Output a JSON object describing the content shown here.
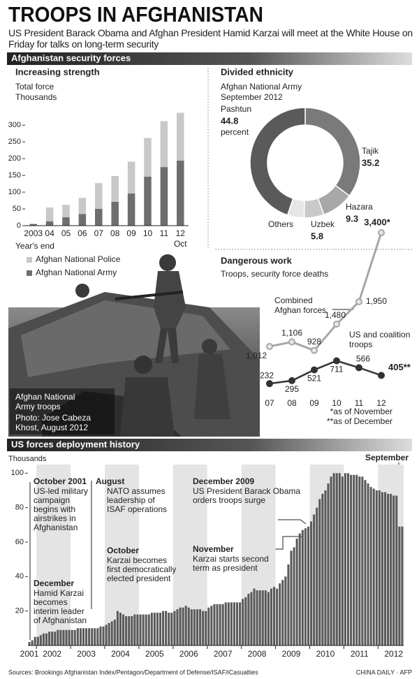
{
  "header": {
    "title": "TROOPS IN AFGHANISTAN",
    "subtitle": "US President Barack Obama and Afghan President Hamid Karzai will meet at the White House on Friday for talks on long-term security"
  },
  "sections": [
    "Afghanistan security forces",
    "US forces deployment history"
  ],
  "photo": {
    "caption": "Afghan National Army troops",
    "credit": "Photo: Jose Cabeza Khost, August 2012"
  },
  "chart_data": [
    {
      "type": "bar",
      "title": "Increasing strength",
      "subtitle": "Total force",
      "y_label": "Thousands",
      "x_label": "Year's end",
      "x_note": "Oct",
      "categories": [
        "2003",
        "04",
        "05",
        "06",
        "07",
        "08",
        "09",
        "10",
        "11",
        "12"
      ],
      "series": [
        {
          "name": "Afghan National Army",
          "color": "#6e6e6e",
          "values": [
            5,
            13,
            25,
            35,
            50,
            71,
            96,
            146,
            175,
            194
          ]
        },
        {
          "name": "Afghan National Police",
          "color": "#c8c8c8",
          "values": [
            0,
            41,
            37,
            48,
            77,
            77,
            95,
            116,
            137,
            143
          ]
        }
      ],
      "ylim": [
        0,
        340
      ],
      "yticks": [
        0,
        50,
        100,
        150,
        200,
        250,
        300
      ]
    },
    {
      "type": "pie",
      "title": "Divided ethnicity",
      "subtitle": "Afghan National Army",
      "note": "September 2012",
      "unit": "percent",
      "categories": [
        "Tajik",
        "Hazara",
        "Uzbek",
        "Others",
        "Pashtun"
      ],
      "values": [
        35.2,
        9.3,
        5.8,
        4.9,
        44.8
      ],
      "value_labels": [
        "35.2",
        "9.3",
        "5.8",
        null,
        "44.8"
      ],
      "colors": [
        "#7a7a7a",
        "#a8a8a8",
        "#c9c9c9",
        "#e6e6e6",
        "#5a5a5a"
      ]
    },
    {
      "type": "line",
      "title": "Dangerous work",
      "subtitle": "Troops, security force deaths",
      "categories": [
        "07",
        "08",
        "09",
        "10",
        "11",
        "12"
      ],
      "series": [
        {
          "name": "Combined Afghan forces",
          "color": "#a6a6a6",
          "values": [
            1012,
            1106,
            928,
            1480,
            1950,
            3400
          ],
          "value_labels": [
            "1,012",
            "1,106",
            "928",
            "1,480",
            "1,950",
            "3,400*"
          ]
        },
        {
          "name": "US and coalition troops",
          "color": "#333333",
          "values": [
            232,
            295,
            521,
            711,
            566,
            405
          ],
          "value_labels": [
            "232",
            "295",
            "521",
            "711",
            "566",
            "405**"
          ]
        }
      ],
      "notes": [
        "*as of November",
        "**as of December"
      ]
    },
    {
      "type": "bar",
      "y_label": "Thousands",
      "color": "#5a5a5a",
      "categories": [
        "2001",
        null,
        null,
        null,
        null,
        null,
        null,
        null,
        "2002",
        null,
        null,
        null,
        null,
        null,
        null,
        null,
        null,
        null,
        null,
        null,
        "2003",
        null,
        null,
        null,
        null,
        null,
        null,
        null,
        null,
        null,
        null,
        null,
        "2004",
        null,
        null,
        null,
        null,
        null,
        null,
        null,
        null,
        null,
        null,
        null,
        "2005",
        null,
        null,
        null,
        null,
        null,
        null,
        null,
        null,
        null,
        null,
        null,
        "2006",
        null,
        null,
        null,
        null,
        null,
        null,
        null,
        null,
        null,
        null,
        null,
        "2007",
        null,
        null,
        null,
        null,
        null,
        null,
        null,
        null,
        null,
        null,
        null,
        "2008",
        null,
        null,
        null,
        null,
        null,
        null,
        null,
        null,
        null,
        null,
        null,
        "2009",
        null,
        null,
        null,
        null,
        null,
        null,
        null,
        null,
        null,
        null,
        null,
        "2010",
        null,
        null,
        null,
        null,
        null,
        null,
        null,
        null,
        null,
        null,
        null,
        "2011",
        null,
        null,
        null,
        null,
        null,
        null,
        null,
        null,
        null,
        null,
        null,
        "2012",
        null,
        null,
        null
      ],
      "values": [
        2,
        3,
        5,
        5,
        6,
        7,
        7,
        8,
        8,
        8,
        9,
        9,
        9,
        9,
        9,
        9,
        9,
        10,
        10,
        10,
        10,
        10,
        10,
        10,
        10,
        11,
        11,
        12,
        13,
        14,
        15,
        20,
        19,
        18,
        17,
        17,
        17,
        18,
        18,
        18,
        18,
        18,
        18,
        19,
        19,
        19,
        19,
        20,
        20,
        19,
        19,
        20,
        21,
        22,
        22,
        23,
        22,
        21,
        21,
        21,
        21,
        20,
        20,
        22,
        23,
        24,
        24,
        24,
        24,
        25,
        25,
        25,
        25,
        25,
        25,
        27,
        28,
        30,
        31,
        33,
        32,
        32,
        32,
        32,
        31,
        33,
        34,
        33,
        36,
        38,
        40,
        47,
        55,
        57,
        62,
        65,
        67,
        68,
        69,
        72,
        76,
        80,
        85,
        88,
        90,
        94,
        98,
        100,
        100,
        100,
        98,
        100,
        100,
        99,
        99,
        99,
        98,
        98,
        96,
        94,
        92,
        91,
        90,
        90,
        89,
        89,
        88,
        88,
        87,
        87,
        69,
        69
      ],
      "ylim": [
        0,
        105
      ],
      "yticks": [
        20,
        40,
        60,
        80,
        100
      ],
      "annotations": [
        {
          "title": "October 2001",
          "text": "US-led military campaign begins with airstrikes in Afghanistan"
        },
        {
          "title": "December",
          "text": "Hamid Karzai becomes interim leader of Afghanistan"
        },
        {
          "title": "August",
          "text": "NATO assumes leadership of ISAF operations"
        },
        {
          "title": "October",
          "text": "Karzai becomes first democratically elected president"
        },
        {
          "title": "December 2009",
          "text": "US President Barack Obama orders troops surge"
        },
        {
          "title": "November",
          "text": "Karzai starts second term as president"
        },
        {
          "title": "September"
        }
      ]
    }
  ],
  "footer": {
    "sources": "Sources: Brookings Afghanistan Index/Pentagon/Department of Defense/ISAF/iCasualties",
    "credit": "CHINA DAILY · AFP"
  }
}
